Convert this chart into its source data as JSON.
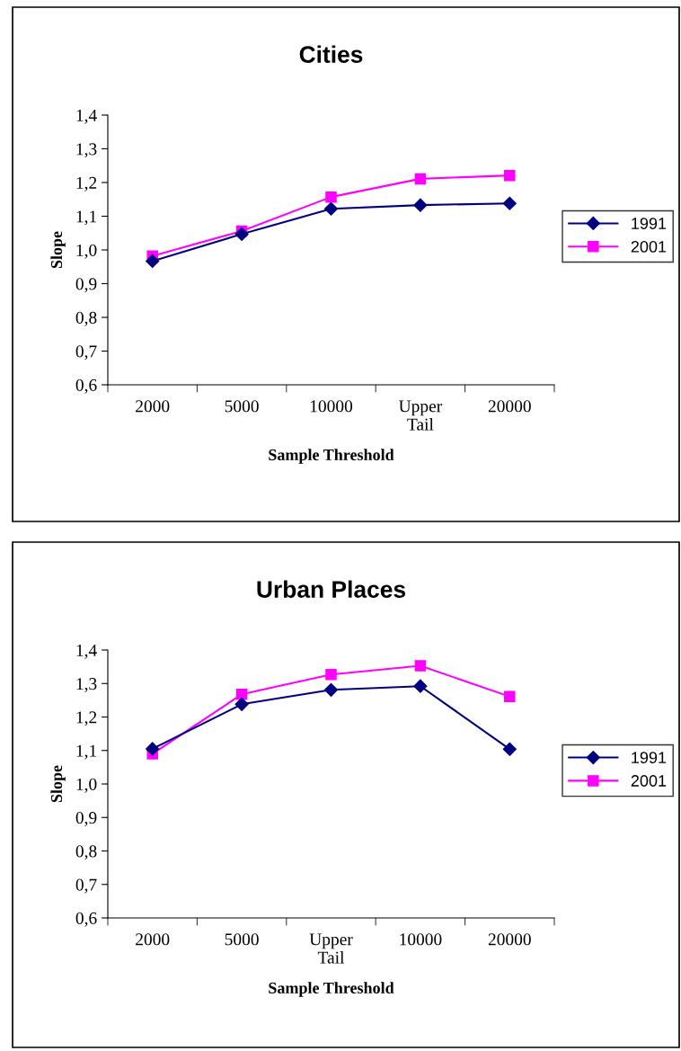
{
  "chart_data": [
    {
      "type": "line",
      "title": "Cities",
      "xlabel": "Sample Threshold",
      "ylabel": "Slope",
      "categories": [
        "2000",
        "5000",
        "10000",
        "Upper\nTail",
        "20000"
      ],
      "series": [
        {
          "name": "1991",
          "color": "#000080",
          "marker": "diamond",
          "values": [
            0.967,
            1.047,
            1.122,
            1.133,
            1.138
          ]
        },
        {
          "name": "2001",
          "color": "#ff00ff",
          "marker": "square",
          "values": [
            0.982,
            1.056,
            1.157,
            1.211,
            1.221
          ]
        }
      ],
      "ylim": [
        0.6,
        1.4
      ],
      "yticks": [
        {
          "value": 0.6,
          "label": "0,6"
        },
        {
          "value": 0.7,
          "label": "0,7"
        },
        {
          "value": 0.8,
          "label": "0,8"
        },
        {
          "value": 0.9,
          "label": "0,9"
        },
        {
          "value": 1.0,
          "label": "1,0"
        },
        {
          "value": 1.1,
          "label": "1,1"
        },
        {
          "value": 1.2,
          "label": "1,2"
        },
        {
          "value": 1.3,
          "label": "1,3"
        },
        {
          "value": 1.4,
          "label": "1,4"
        }
      ],
      "grid": false,
      "legend": "right",
      "line_style": "solid"
    },
    {
      "type": "line",
      "title": "Urban Places",
      "xlabel": "Sample Threshold",
      "ylabel": "Slope",
      "categories": [
        "2000",
        "5000",
        "Upper\nTail",
        "10000",
        "20000"
      ],
      "series": [
        {
          "name": "1991",
          "color": "#000080",
          "marker": "diamond",
          "values": [
            1.105,
            1.238,
            1.281,
            1.292,
            1.104
          ]
        },
        {
          "name": "2001",
          "color": "#ff00ff",
          "marker": "square",
          "values": [
            1.09,
            1.268,
            1.327,
            1.353,
            1.261
          ]
        }
      ],
      "ylim": [
        0.6,
        1.4
      ],
      "yticks": [
        {
          "value": 0.6,
          "label": "0,6"
        },
        {
          "value": 0.7,
          "label": "0,7"
        },
        {
          "value": 0.8,
          "label": "0,8"
        },
        {
          "value": 0.9,
          "label": "0,9"
        },
        {
          "value": 1.0,
          "label": "1,0"
        },
        {
          "value": 1.1,
          "label": "1,1"
        },
        {
          "value": 1.2,
          "label": "1,2"
        },
        {
          "value": 1.3,
          "label": "1,3"
        },
        {
          "value": 1.4,
          "label": "1,4"
        }
      ],
      "grid": false,
      "legend": "right",
      "line_style": "solid"
    }
  ]
}
